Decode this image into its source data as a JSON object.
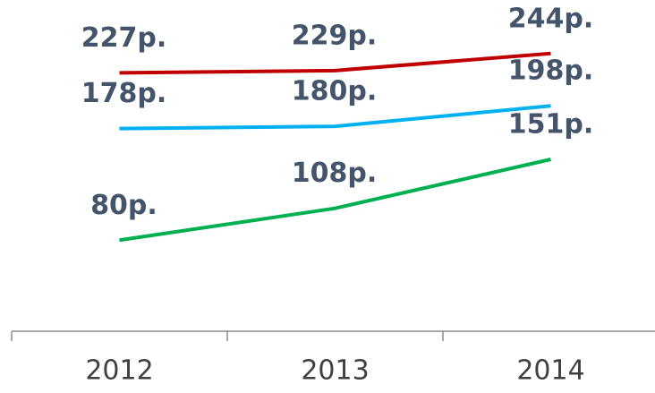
{
  "chart_data": {
    "type": "line",
    "categories": [
      "2012",
      "2013",
      "2014"
    ],
    "series": [
      {
        "color": "#c00000",
        "values": [
          227,
          229,
          244
        ],
        "value_labels": [
          "227р.",
          "229р.",
          "244р."
        ]
      },
      {
        "color": "#00b0f0",
        "values": [
          178,
          180,
          198
        ],
        "value_labels": [
          "178р.",
          "180р.",
          "198р."
        ]
      },
      {
        "color": "#00b050",
        "values": [
          80,
          108,
          151
        ],
        "value_labels": [
          "80р.",
          "108р.",
          "151р."
        ]
      }
    ],
    "ylim": [
      0,
      291
    ]
  }
}
